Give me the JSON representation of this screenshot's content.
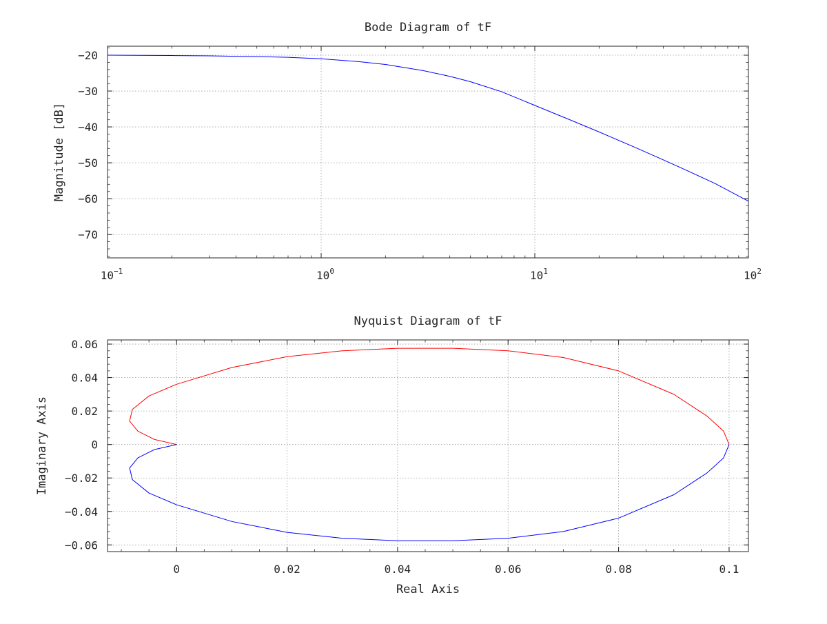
{
  "chart_data": [
    {
      "type": "line",
      "title": "Bode Diagram of tF",
      "xlabel": "",
      "ylabel": "Magnitude [dB]",
      "xscale": "log",
      "xlim": [
        0.1,
        100
      ],
      "ylim": [
        -76.5,
        -17.5
      ],
      "x_ticks": [
        {
          "base": "10",
          "exp": "−1",
          "value": 0.1
        },
        {
          "base": "10",
          "exp": "0",
          "value": 1
        },
        {
          "base": "10",
          "exp": "1",
          "value": 10
        },
        {
          "base": "10",
          "exp": "2",
          "value": 100
        }
      ],
      "y_ticks": [
        {
          "label": "−20",
          "value": -20
        },
        {
          "label": "−30",
          "value": -30
        },
        {
          "label": "−40",
          "value": -40
        },
        {
          "label": "−50",
          "value": -50
        },
        {
          "label": "−60",
          "value": -60
        },
        {
          "label": "−70",
          "value": -70
        }
      ],
      "grid": true,
      "series": [
        {
          "color": "#0000ff",
          "x": [
            0.1,
            0.2,
            0.3,
            0.5,
            0.7,
            1,
            1.5,
            2,
            3,
            4,
            5,
            7,
            10,
            15,
            20,
            30,
            40,
            50,
            70,
            100
          ],
          "y": [
            -20.0,
            -20.1,
            -20.2,
            -20.4,
            -20.6,
            -21.0,
            -21.8,
            -22.6,
            -24.3,
            -25.9,
            -27.4,
            -30.2,
            -34.0,
            -38.3,
            -41.4,
            -45.9,
            -49.2,
            -51.8,
            -55.8,
            -60.7
          ]
        }
      ]
    },
    {
      "type": "line",
      "title": "Nyquist Diagram of tF",
      "xlabel": "Real Axis",
      "ylabel": "Imaginary Axis",
      "xlim": [
        -0.0125,
        0.1035
      ],
      "ylim": [
        -0.064,
        0.0625
      ],
      "x_ticks": [
        {
          "label": "0",
          "value": 0
        },
        {
          "label": "0.02",
          "value": 0.02
        },
        {
          "label": "0.04",
          "value": 0.04
        },
        {
          "label": "0.06",
          "value": 0.06
        },
        {
          "label": "0.08",
          "value": 0.08
        },
        {
          "label": "0.1",
          "value": 0.1
        }
      ],
      "y_ticks": [
        {
          "label": "0.06",
          "value": 0.06
        },
        {
          "label": "0.04",
          "value": 0.04
        },
        {
          "label": "0.02",
          "value": 0.02
        },
        {
          "label": "0",
          "value": 0
        },
        {
          "label": "−0.02",
          "value": -0.02
        },
        {
          "label": "−0.04",
          "value": -0.04
        },
        {
          "label": "−0.06",
          "value": -0.06
        }
      ],
      "grid": true,
      "series": [
        {
          "color": "#ff0000",
          "x": [
            0.1,
            0.099,
            0.096,
            0.09,
            0.08,
            0.07,
            0.06,
            0.05,
            0.04,
            0.03,
            0.02,
            0.01,
            0.0,
            -0.005,
            -0.008,
            -0.0085,
            -0.007,
            -0.004,
            0.0
          ],
          "y": [
            0.0,
            0.008,
            0.017,
            0.03,
            0.044,
            0.052,
            0.056,
            0.0575,
            0.0575,
            0.056,
            0.0525,
            0.046,
            0.036,
            0.029,
            0.021,
            0.014,
            0.008,
            0.003,
            0.0
          ]
        },
        {
          "color": "#0000ff",
          "x": [
            0.1,
            0.099,
            0.096,
            0.09,
            0.08,
            0.07,
            0.06,
            0.05,
            0.04,
            0.03,
            0.02,
            0.01,
            0.0,
            -0.005,
            -0.008,
            -0.0085,
            -0.007,
            -0.004,
            0.0
          ],
          "y": [
            0.0,
            -0.008,
            -0.017,
            -0.03,
            -0.044,
            -0.052,
            -0.056,
            -0.0575,
            -0.0575,
            -0.056,
            -0.0525,
            -0.046,
            -0.036,
            -0.029,
            -0.021,
            -0.014,
            -0.008,
            -0.003,
            0.0
          ]
        }
      ]
    }
  ]
}
